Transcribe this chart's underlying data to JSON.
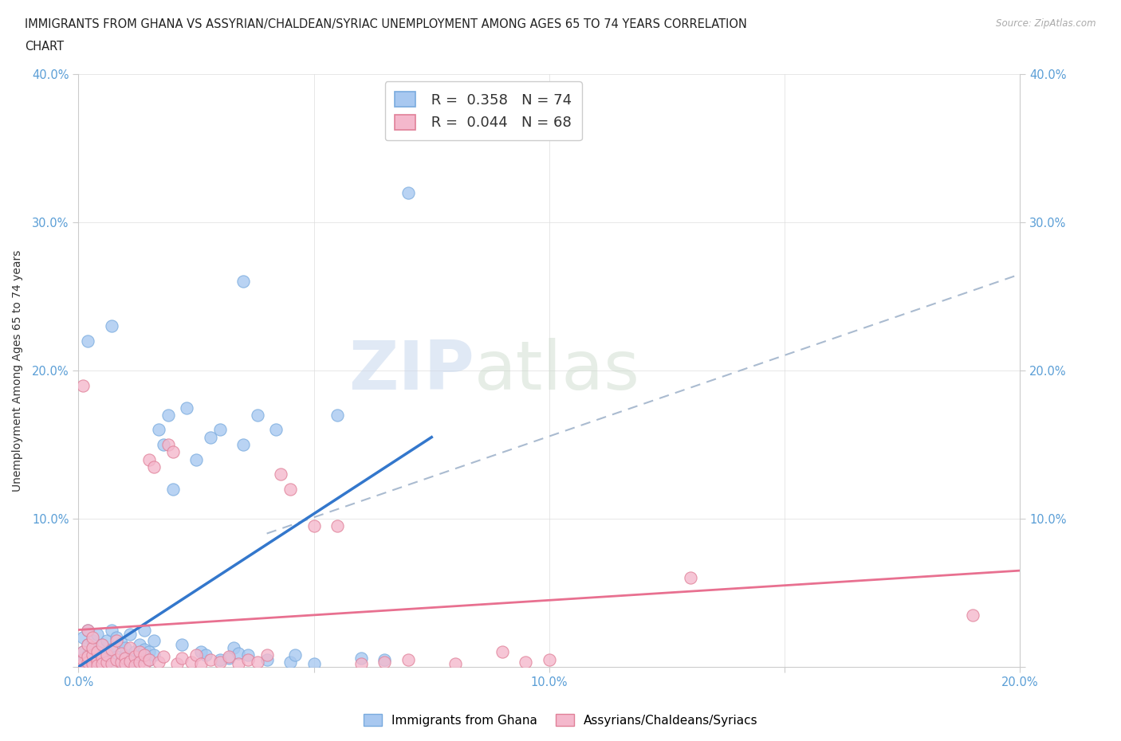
{
  "title_line1": "IMMIGRANTS FROM GHANA VS ASSYRIAN/CHALDEAN/SYRIAC UNEMPLOYMENT AMONG AGES 65 TO 74 YEARS CORRELATION",
  "title_line2": "CHART",
  "source": "Source: ZipAtlas.com",
  "ylabel": "Unemployment Among Ages 65 to 74 years",
  "xlim": [
    0.0,
    0.2
  ],
  "ylim": [
    0.0,
    0.4
  ],
  "xticks": [
    0.0,
    0.05,
    0.1,
    0.15,
    0.2
  ],
  "yticks": [
    0.0,
    0.1,
    0.2,
    0.3,
    0.4
  ],
  "xtick_labels": [
    "0.0%",
    "",
    "10.0%",
    "",
    "20.0%"
  ],
  "ytick_labels_left": [
    "",
    "10.0%",
    "20.0%",
    "30.0%",
    "40.0%"
  ],
  "ytick_labels_right": [
    "",
    "10.0%",
    "20.0%",
    "30.0%",
    "40.0%"
  ],
  "ghana_color": "#a8c8f0",
  "ghana_edge": "#7aabde",
  "assyrian_color": "#f4b8cc",
  "assyrian_edge": "#e08098",
  "ghana_R": 0.358,
  "ghana_N": 74,
  "assyrian_R": 0.044,
  "assyrian_N": 68,
  "ghana_label": "Immigrants from Ghana",
  "assyrian_label": "Assyrians/Chaldeans/Syriacs",
  "watermark_zip": "ZIP",
  "watermark_atlas": "atlas",
  "background_color": "#ffffff",
  "ghana_line_color": "#3377cc",
  "assyrian_line_color": "#e87090",
  "dashed_line_color": "#aabbd0",
  "ghana_line_x": [
    0.0,
    0.075
  ],
  "ghana_line_y": [
    0.0,
    0.155
  ],
  "assyrian_line_x": [
    0.0,
    0.2
  ],
  "assyrian_line_y": [
    0.025,
    0.065
  ],
  "dashed_line_x": [
    0.04,
    0.2
  ],
  "dashed_line_y": [
    0.09,
    0.265
  ],
  "ghana_scatter": [
    [
      0.001,
      0.005
    ],
    [
      0.001,
      0.01
    ],
    [
      0.001,
      0.003
    ],
    [
      0.001,
      0.02
    ],
    [
      0.002,
      0.008
    ],
    [
      0.002,
      0.002
    ],
    [
      0.002,
      0.015
    ],
    [
      0.002,
      0.025
    ],
    [
      0.003,
      0.004
    ],
    [
      0.003,
      0.012
    ],
    [
      0.003,
      0.007
    ],
    [
      0.003,
      0.018
    ],
    [
      0.003,
      0.003
    ],
    [
      0.004,
      0.006
    ],
    [
      0.004,
      0.01
    ],
    [
      0.004,
      0.002
    ],
    [
      0.004,
      0.022
    ],
    [
      0.005,
      0.008
    ],
    [
      0.005,
      0.015
    ],
    [
      0.005,
      0.004
    ],
    [
      0.006,
      0.003
    ],
    [
      0.006,
      0.01
    ],
    [
      0.006,
      0.018
    ],
    [
      0.007,
      0.005
    ],
    [
      0.007,
      0.012
    ],
    [
      0.007,
      0.025
    ],
    [
      0.008,
      0.007
    ],
    [
      0.008,
      0.02
    ],
    [
      0.009,
      0.004
    ],
    [
      0.009,
      0.016
    ],
    [
      0.01,
      0.008
    ],
    [
      0.01,
      0.013
    ],
    [
      0.011,
      0.005
    ],
    [
      0.011,
      0.022
    ],
    [
      0.012,
      0.01
    ],
    [
      0.012,
      0.003
    ],
    [
      0.013,
      0.015
    ],
    [
      0.013,
      0.007
    ],
    [
      0.014,
      0.012
    ],
    [
      0.014,
      0.025
    ],
    [
      0.015,
      0.005
    ],
    [
      0.015,
      0.01
    ],
    [
      0.016,
      0.018
    ],
    [
      0.016,
      0.008
    ],
    [
      0.017,
      0.16
    ],
    [
      0.018,
      0.15
    ],
    [
      0.019,
      0.17
    ],
    [
      0.02,
      0.12
    ],
    [
      0.022,
      0.015
    ],
    [
      0.023,
      0.175
    ],
    [
      0.025,
      0.14
    ],
    [
      0.026,
      0.01
    ],
    [
      0.027,
      0.008
    ],
    [
      0.028,
      0.155
    ],
    [
      0.03,
      0.005
    ],
    [
      0.03,
      0.16
    ],
    [
      0.032,
      0.006
    ],
    [
      0.033,
      0.013
    ],
    [
      0.034,
      0.009
    ],
    [
      0.035,
      0.15
    ],
    [
      0.036,
      0.008
    ],
    [
      0.038,
      0.17
    ],
    [
      0.04,
      0.005
    ],
    [
      0.042,
      0.16
    ],
    [
      0.045,
      0.003
    ],
    [
      0.046,
      0.008
    ],
    [
      0.05,
      0.002
    ],
    [
      0.055,
      0.17
    ],
    [
      0.06,
      0.006
    ],
    [
      0.065,
      0.005
    ],
    [
      0.07,
      0.32
    ],
    [
      0.002,
      0.22
    ],
    [
      0.007,
      0.23
    ],
    [
      0.035,
      0.26
    ]
  ],
  "assyrian_scatter": [
    [
      0.001,
      0.19
    ],
    [
      0.001,
      0.002
    ],
    [
      0.001,
      0.005
    ],
    [
      0.001,
      0.01
    ],
    [
      0.002,
      0.003
    ],
    [
      0.002,
      0.007
    ],
    [
      0.002,
      0.015
    ],
    [
      0.002,
      0.025
    ],
    [
      0.003,
      0.002
    ],
    [
      0.003,
      0.008
    ],
    [
      0.003,
      0.013
    ],
    [
      0.003,
      0.02
    ],
    [
      0.004,
      0.004
    ],
    [
      0.004,
      0.01
    ],
    [
      0.004,
      0.001
    ],
    [
      0.005,
      0.006
    ],
    [
      0.005,
      0.002
    ],
    [
      0.005,
      0.015
    ],
    [
      0.006,
      0.003
    ],
    [
      0.006,
      0.008
    ],
    [
      0.007,
      0.012
    ],
    [
      0.007,
      0.002
    ],
    [
      0.008,
      0.005
    ],
    [
      0.008,
      0.018
    ],
    [
      0.009,
      0.003
    ],
    [
      0.009,
      0.009
    ],
    [
      0.01,
      0.006
    ],
    [
      0.01,
      0.002
    ],
    [
      0.011,
      0.004
    ],
    [
      0.011,
      0.013
    ],
    [
      0.012,
      0.007
    ],
    [
      0.012,
      0.001
    ],
    [
      0.013,
      0.01
    ],
    [
      0.013,
      0.003
    ],
    [
      0.014,
      0.002
    ],
    [
      0.014,
      0.008
    ],
    [
      0.015,
      0.005
    ],
    [
      0.015,
      0.14
    ],
    [
      0.016,
      0.135
    ],
    [
      0.017,
      0.003
    ],
    [
      0.018,
      0.007
    ],
    [
      0.019,
      0.15
    ],
    [
      0.02,
      0.145
    ],
    [
      0.021,
      0.002
    ],
    [
      0.022,
      0.006
    ],
    [
      0.024,
      0.003
    ],
    [
      0.025,
      0.008
    ],
    [
      0.026,
      0.002
    ],
    [
      0.028,
      0.005
    ],
    [
      0.03,
      0.003
    ],
    [
      0.032,
      0.007
    ],
    [
      0.034,
      0.002
    ],
    [
      0.036,
      0.005
    ],
    [
      0.038,
      0.003
    ],
    [
      0.04,
      0.008
    ],
    [
      0.043,
      0.13
    ],
    [
      0.045,
      0.12
    ],
    [
      0.05,
      0.095
    ],
    [
      0.055,
      0.095
    ],
    [
      0.06,
      0.002
    ],
    [
      0.065,
      0.003
    ],
    [
      0.07,
      0.005
    ],
    [
      0.08,
      0.002
    ],
    [
      0.09,
      0.01
    ],
    [
      0.095,
      0.003
    ],
    [
      0.1,
      0.005
    ],
    [
      0.19,
      0.035
    ],
    [
      0.13,
      0.06
    ]
  ]
}
